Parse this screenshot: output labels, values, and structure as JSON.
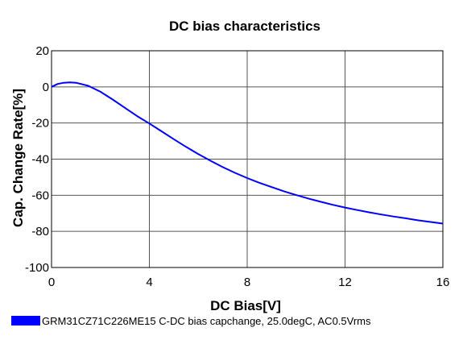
{
  "chart_data": {
    "type": "line",
    "title": "DC bias characteristics",
    "xlabel": "DC Bias[V]",
    "ylabel": "Cap. Change Rate[%]",
    "xlim": [
      0,
      16
    ],
    "ylim": [
      -100,
      20
    ],
    "xticks": [
      0,
      4,
      8,
      12,
      16
    ],
    "yticks": [
      20,
      0,
      -20,
      -40,
      -60,
      -80,
      -100
    ],
    "grid": true,
    "legend_position": "bottom-left",
    "series": [
      {
        "name": "GRM31CZ71C226ME15 C-DC bias capchange, 25.0degC, AC0.5Vrms",
        "color": "#0000ff",
        "x": [
          0,
          0.25,
          0.5,
          0.75,
          1.0,
          1.5,
          2.0,
          2.5,
          3.0,
          3.5,
          4.0,
          4.5,
          5.0,
          5.5,
          6.0,
          6.5,
          7.0,
          7.5,
          8.0,
          8.5,
          9.0,
          9.5,
          10.0,
          10.5,
          11.0,
          11.5,
          12.0,
          12.5,
          13.0,
          13.5,
          14.0,
          14.5,
          15.0,
          15.5,
          16.0
        ],
        "y": [
          0,
          1.6,
          2.3,
          2.5,
          2.3,
          0.6,
          -2.7,
          -7.0,
          -11.6,
          -16.2,
          -20.3,
          -24.6,
          -29.0,
          -33.2,
          -37.2,
          -40.9,
          -44.4,
          -47.6,
          -50.5,
          -53.1,
          -55.5,
          -57.8,
          -59.9,
          -61.8,
          -63.6,
          -65.3,
          -66.8,
          -68.2,
          -69.5,
          -70.7,
          -71.8,
          -72.8,
          -73.9,
          -74.8,
          -75.7
        ]
      }
    ]
  }
}
